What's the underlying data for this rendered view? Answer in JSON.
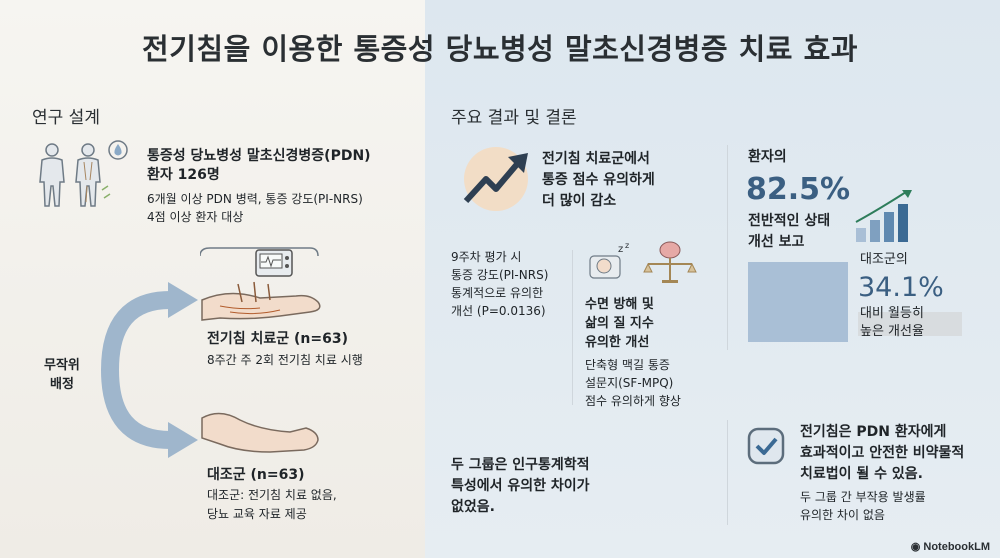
{
  "title": "전기침을 이용한 통증성 당뇨병성 말초신경병증 치료 효과",
  "design": {
    "heading": "연구 설계",
    "patients_line1": "통증성 당뇨병성 말초신경병증(PDN)",
    "patients_line2": "환자 126명",
    "criteria_line1": "6개월 이상 PDN 병력, 통증 강도(PI-NRS)",
    "criteria_line2": "4점 이상 환자 대상",
    "random_line1": "무작위",
    "random_line2": "배정",
    "treatment_title": "전기침 치료군 (n=63)",
    "treatment_desc": "8주간 주 2회 전기침 치료 시행",
    "control_title": "대조군 (n=63)",
    "control_desc1": "대조군: 전기침 치료 없음,",
    "control_desc2": "당뇨 교육 자료 제공"
  },
  "results": {
    "heading": "주요 결과 및 결론",
    "pain_title1": "전기침 치료군에서",
    "pain_title2": "통증 점수 유의하게",
    "pain_title3": "더 많이 감소",
    "pain_desc1": "9주차 평가 시",
    "pain_desc2": "통증 강도(PI-NRS)",
    "pain_desc3": "통계적으로 유의한",
    "pain_desc4": "개선 (P=0.0136)",
    "sleep_title1": "수면 방해 및",
    "sleep_title2": "삶의 질 지수",
    "sleep_title3": "유의한 개선",
    "sleep_desc1": "단축형 맥길 통증",
    "sleep_desc2": "설문지(SF-MPQ)",
    "sleep_desc3": "점수 유의하게 향상",
    "patient_label": "환자의",
    "patient_pct": "82.5%",
    "patient_desc1": "전반적인 상태",
    "patient_desc2": "개선 보고",
    "control_label": "대조군의",
    "control_pct": "34.1%",
    "control_desc1": "대비 월등히",
    "control_desc2": "높은 개선율",
    "baseline_line1": "두 그룹은 인구통계학적",
    "baseline_line2": "특성에서 유의한 차이가",
    "baseline_line3": "없었음.",
    "conclusion_line1": "전기침은 PDN 환자에게",
    "conclusion_line2": "효과적이고 안전한 비약물적",
    "conclusion_line3": "치료법이 될 수 있음.",
    "safety_line1": "두 그룹 간 부작용 발생률",
    "safety_line2": "유의한 차이 없음"
  },
  "logo": "NotebookLM",
  "colors": {
    "accent_blue": "#8aa9c6",
    "bar_blue": "#a9bfd6",
    "right_bg": "#dde7ef",
    "left_bg": "#f3f1ec"
  }
}
